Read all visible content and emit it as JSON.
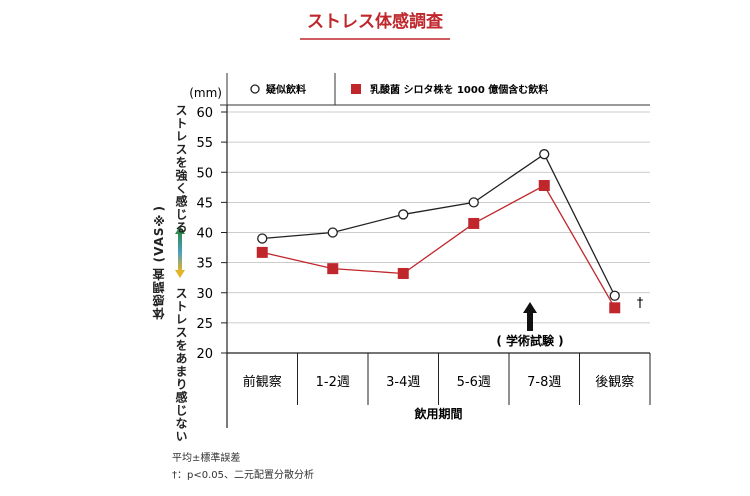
{
  "chart_data": {
    "type": "line",
    "title": "ストレス体感調査",
    "unit_label": "(mm)",
    "xlabel": "飲用期間",
    "ylabel": "体感調査 (VAS※)",
    "ylabel_high": "ストレスを強く感じる",
    "ylabel_low": "ストレスをあまり感じない",
    "categories": [
      "前観察",
      "1-2週",
      "3-4週",
      "5-6週",
      "7-8週",
      "後観察"
    ],
    "ylim": [
      20,
      60
    ],
    "yticks": [
      20,
      25,
      30,
      35,
      40,
      45,
      50,
      55,
      60
    ],
    "grid": true,
    "legend_position": "top",
    "series": [
      {
        "name": "疑似飲料",
        "marker": "circle",
        "color": "#222222",
        "values": [
          39,
          40,
          43,
          45,
          53,
          29.5
        ]
      },
      {
        "name": "乳酸菌 シロタ株を 1000 億個含む飲料",
        "marker": "square",
        "color": "#c0272d",
        "values": [
          36.7,
          34,
          33.2,
          41.5,
          47.8,
          27.5
        ]
      }
    ],
    "annotations": {
      "arrow_label": "( 学術試験 )",
      "dagger": "†"
    },
    "notes": [
      "平均±標準誤差",
      "†：p<0.05、二元配置分散分析"
    ]
  },
  "colors": {
    "accent": "#c0272d",
    "grid": "#bbbbbb",
    "arrow_top": "#2e8b4f",
    "arrow_mid": "#4a9fc0",
    "arrow_bottom": "#e2b42a"
  }
}
